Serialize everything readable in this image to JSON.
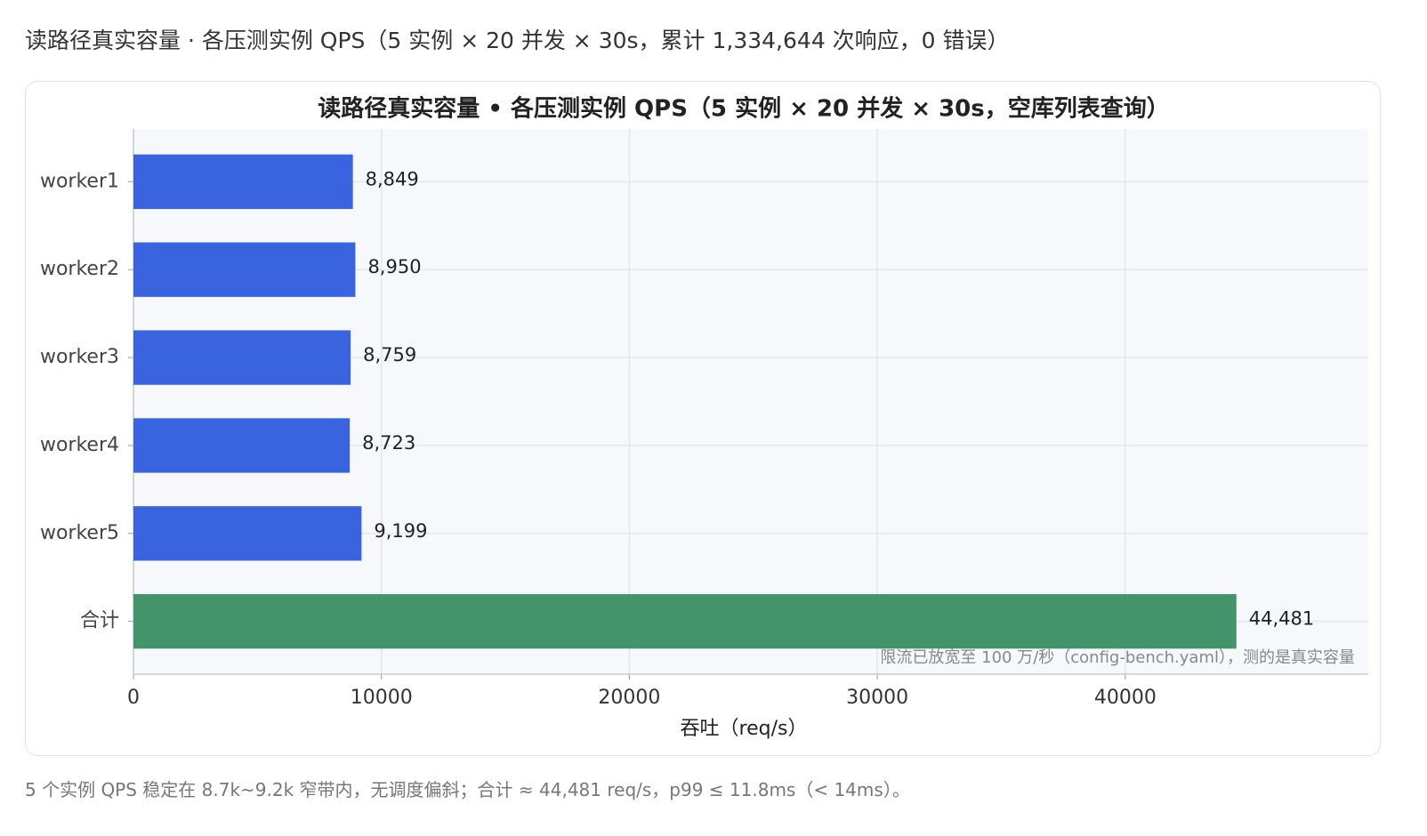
{
  "header": {
    "title": "读路径真实容量 · 各压测实例 QPS（5 实例 × 20 并发 × 30s，累计 1,334,644 次响应，0 错误）"
  },
  "chart_data": {
    "type": "barh",
    "title": "读路径真实容量 • 各压测实例 QPS（5 实例 × 20 并发 × 30s，空库列表查询）",
    "categories": [
      "worker1",
      "worker2",
      "worker3",
      "worker4",
      "worker5",
      "合计"
    ],
    "values": [
      8849,
      8950,
      8759,
      8723,
      9199,
      44481
    ],
    "value_labels": [
      "8,849",
      "8,950",
      "8,759",
      "8,723",
      "9,199",
      "44,481"
    ],
    "colors": [
      "#3a63e0",
      "#3a63e0",
      "#3a63e0",
      "#3a63e0",
      "#3a63e0",
      "#43946b"
    ],
    "xlabel": "吞吐（req/s）",
    "xlim": [
      0,
      49800
    ],
    "xticks": [
      0,
      10000,
      20000,
      30000,
      40000
    ],
    "grid": true,
    "annotation": "限流已放宽至 100 万/秒（config-bench.yaml），测的是真实容量"
  },
  "caption": "5 个实例 QPS 稳定在 8.7k~9.2k 窄带内，无调度偏斜；合计 ≈ 44,481 req/s，p99 ≤ 11.8ms（< 14ms）。"
}
